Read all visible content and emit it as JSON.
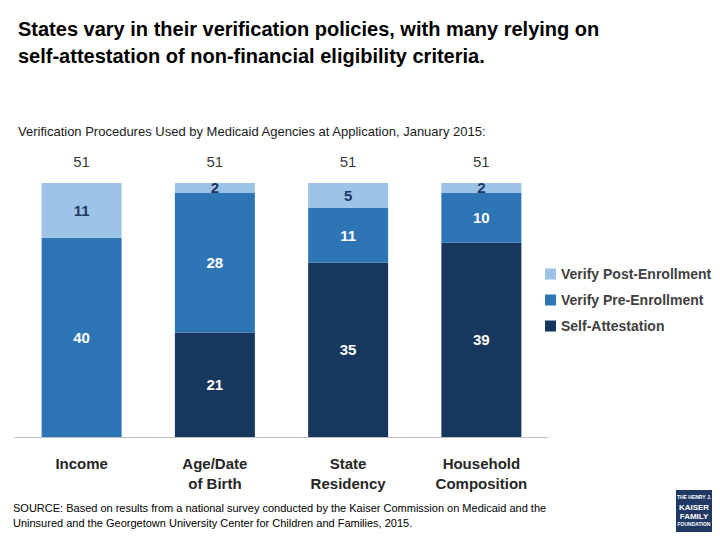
{
  "chart_data": {
    "type": "bar",
    "title": "States vary in their verification policies, with many relying on self-attestation of non-financial eligibility criteria.",
    "subtitle": "Verification Procedures Used by Medicaid Agencies at Application, January 2015:",
    "categories": [
      "Income",
      "Age/Date of Birth",
      "State Residency",
      "Household Composition"
    ],
    "series": [
      {
        "name": "Self-Attestation",
        "color": "#17375e",
        "values": [
          0,
          21,
          35,
          39
        ]
      },
      {
        "name": "Verify Pre-Enrollment",
        "color": "#2e75b6",
        "values": [
          40,
          28,
          11,
          10
        ]
      },
      {
        "name": "Verify Post-Enrollment",
        "color": "#9dc3e6",
        "values": [
          11,
          2,
          5,
          2
        ]
      }
    ],
    "totals": [
      51,
      51,
      51,
      51
    ],
    "stacked": true,
    "data_labels": true,
    "legend": "right",
    "ylim": [
      0,
      51
    ],
    "tick_labels": "x",
    "grid": false,
    "source": "SOURCE: Based on results from a national survey conducted by the Kaiser Commission on Medicaid and the Uninsured and the Georgetown University Center for Children and Families, 2015.",
    "logo": [
      "THE HENRY J.",
      "KAISER",
      "FAMILY",
      "FOUNDATION"
    ]
  }
}
